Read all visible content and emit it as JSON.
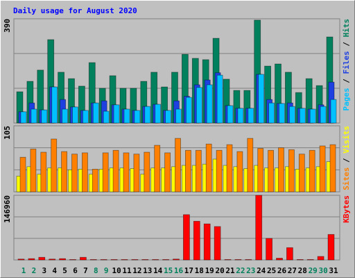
{
  "title": "Daily usage for August 2020",
  "chart_data": [
    {
      "type": "bar",
      "ylim": [
        0,
        390
      ],
      "yticks": [
        390
      ],
      "grid_lines": [
        130,
        260
      ],
      "legend_separator": " / ",
      "series": [
        {
          "name": "Pages",
          "color": "#00c0ff",
          "values": [
            42,
            52,
            49,
            135,
            52,
            60,
            47,
            75,
            44,
            68,
            52,
            47,
            62,
            70,
            47,
            52,
            96,
            133,
            143,
            179,
            65,
            55,
            55,
            182,
            75,
            73,
            62,
            55,
            52,
            62,
            88
          ]
        },
        {
          "name": "Files",
          "color": "#1f40e0",
          "values": [
            42,
            75,
            49,
            135,
            88,
            60,
            47,
            75,
            83,
            68,
            52,
            47,
            62,
            70,
            47,
            83,
            100,
            143,
            161,
            188,
            65,
            55,
            55,
            182,
            88,
            73,
            75,
            55,
            52,
            68,
            153
          ]
        },
        {
          "name": "Hits",
          "color": "#00805c",
          "values": [
            117,
            156,
            198,
            312,
            190,
            166,
            138,
            226,
            130,
            177,
            130,
            130,
            156,
            190,
            135,
            190,
            257,
            242,
            237,
            317,
            164,
            122,
            122,
            385,
            213,
            221,
            190,
            114,
            166,
            140,
            322
          ]
        }
      ]
    },
    {
      "type": "bar",
      "ylim": [
        0,
        105
      ],
      "yticks": [
        105
      ],
      "grid_lines": [
        35,
        70
      ],
      "legend_separator": " / ",
      "series": [
        {
          "name": "Sites",
          "color": "#ff8000",
          "values": [
            55,
            68,
            63,
            84,
            64,
            60,
            62,
            36,
            62,
            66,
            62,
            60,
            63,
            74,
            62,
            85,
            66,
            66,
            76,
            66,
            75,
            64,
            85,
            69,
            66,
            70,
            67,
            60,
            66,
            73,
            75
          ]
        },
        {
          "name": "Visits",
          "color": "#ffff00",
          "values": [
            25,
            40,
            28,
            38,
            38,
            35,
            36,
            28,
            36,
            38,
            38,
            37,
            28,
            38,
            38,
            40,
            42,
            42,
            44,
            52,
            42,
            40,
            37,
            42,
            38,
            38,
            40,
            36,
            38,
            40,
            48
          ]
        }
      ]
    },
    {
      "type": "bar",
      "ylim": [
        0,
        146960
      ],
      "yticks": [
        146960
      ],
      "grid_lines": [
        48987,
        97973
      ],
      "series": [
        {
          "name": "KBytes",
          "color": "#ff0000",
          "values": [
            2000,
            3000,
            6000,
            2000,
            3000,
            1000,
            6000,
            1000,
            1000,
            1000,
            1000,
            1000,
            1000,
            1000,
            1000,
            2000,
            103000,
            88000,
            82000,
            76000,
            1000,
            1000,
            1000,
            146960,
            49000,
            4000,
            28000,
            1000,
            1000,
            8000,
            58000
          ]
        }
      ],
      "categories": [
        "1",
        "2",
        "3",
        "4",
        "5",
        "6",
        "7",
        "8",
        "9",
        "10",
        "11",
        "12",
        "13",
        "14",
        "15",
        "16",
        "17",
        "18",
        "19",
        "20",
        "21",
        "22",
        "23",
        "24",
        "25",
        "26",
        "27",
        "28",
        "29",
        "30",
        "31"
      ],
      "category_colors": [
        "#00805c",
        "#00805c",
        "#000000",
        "#000000",
        "#000000",
        "#000000",
        "#000000",
        "#00805c",
        "#00805c",
        "#000000",
        "#000000",
        "#000000",
        "#000000",
        "#000000",
        "#00805c",
        "#00805c",
        "#000000",
        "#000000",
        "#000000",
        "#000000",
        "#000000",
        "#00805c",
        "#00805c",
        "#000000",
        "#000000",
        "#000000",
        "#000000",
        "#000000",
        "#00805c",
        "#00805c",
        "#000000"
      ]
    }
  ]
}
